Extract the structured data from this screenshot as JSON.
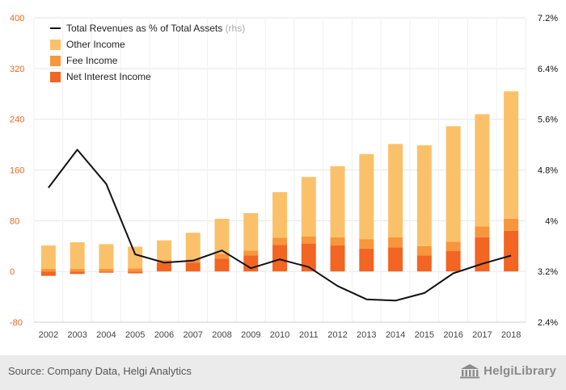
{
  "chart_data": {
    "type": "bar",
    "stacked": true,
    "categories": [
      "2002",
      "2003",
      "2004",
      "2005",
      "2006",
      "2007",
      "2008",
      "2009",
      "2010",
      "2011",
      "2012",
      "2013",
      "2014",
      "2015",
      "2016",
      "2017",
      "2018"
    ],
    "series": [
      {
        "name": "Net Interest Income",
        "color": "#f26522",
        "values": [
          -7,
          -4,
          -2,
          -3,
          14,
          14,
          20,
          25,
          42,
          44,
          41,
          36,
          38,
          25,
          32,
          54,
          64
        ]
      },
      {
        "name": "Fee Income",
        "color": "#f7963c",
        "values": [
          4,
          4,
          4,
          5,
          4,
          5,
          8,
          8,
          11,
          11,
          13,
          15,
          16,
          15,
          15,
          17,
          19
        ]
      },
      {
        "name": "Other Income",
        "color": "#fbc16a",
        "values": [
          37,
          42,
          39,
          34,
          31,
          42,
          55,
          59,
          72,
          94,
          112,
          134,
          147,
          159,
          182,
          177,
          201
        ]
      }
    ],
    "line": {
      "name": "Total Revenues as % of Total Assets",
      "suffix": "(rhs)",
      "color": "#111111",
      "values": [
        4.52,
        5.12,
        4.58,
        3.47,
        3.34,
        3.37,
        3.53,
        3.25,
        3.39,
        3.27,
        2.97,
        2.76,
        2.74,
        2.86,
        3.17,
        3.32,
        3.45
      ]
    },
    "ylim": [
      -80,
      400
    ],
    "yticks": [
      "400",
      "320",
      "240",
      "160",
      "80",
      "0",
      "-80"
    ],
    "ytick_values": [
      400,
      320,
      240,
      160,
      80,
      0,
      -80
    ],
    "y2lim": [
      2.4,
      7.2
    ],
    "y2ticks": [
      "7.2%",
      "6.4%",
      "5.6%",
      "4.8%",
      "4%",
      "3.2%",
      "2.4%"
    ],
    "y2tick_values": [
      7.2,
      6.4,
      5.6,
      4.8,
      4.0,
      3.2,
      2.4
    ],
    "legend_position": "top-left",
    "grid": true,
    "colors": {
      "axis_left": "#f26522",
      "axis_right": "#111111",
      "grid": "#e6e6e6"
    }
  },
  "footer": {
    "source": "Source: Company Data, Helgi Analytics",
    "brand": "HelgiLibrary",
    "brand_icon": "library-building-icon"
  }
}
